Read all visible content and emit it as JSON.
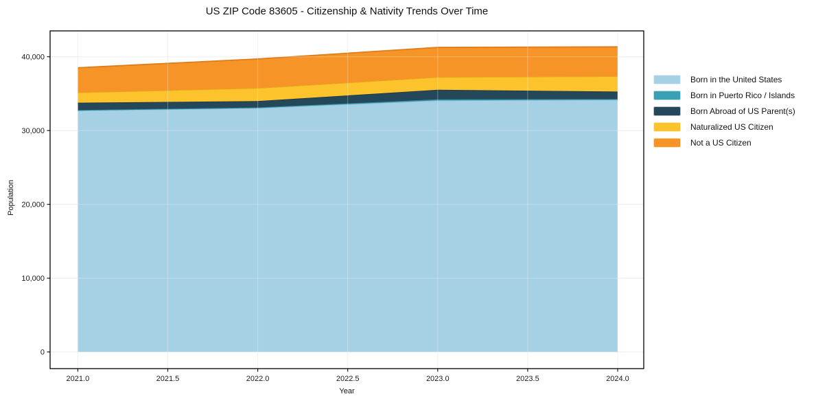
{
  "title": "US ZIP Code 83605 - Citizenship & Nativity Trends Over Time",
  "chart_data": {
    "type": "area",
    "stacked": true,
    "title": "US ZIP Code 83605 - Citizenship & Nativity Trends Over Time",
    "xlabel": "Year",
    "ylabel": "Population",
    "x": [
      2021,
      2022,
      2023,
      2024
    ],
    "xlim": [
      2020.846,
      2024.145
    ],
    "ylim": [
      -2260,
      43507
    ],
    "x_tick_values": [
      2021.0,
      2021.5,
      2022.0,
      2022.5,
      2023.0,
      2023.5,
      2024.0
    ],
    "x_ticks": [
      "2021.0",
      "2021.5",
      "2022.0",
      "2022.5",
      "2023.0",
      "2023.5",
      "2024.0"
    ],
    "y_tick_values": [
      0,
      10000,
      20000,
      30000,
      40000
    ],
    "y_ticks": [
      "0",
      "10,000",
      "20,000",
      "30,000",
      "40,000"
    ],
    "grid": true,
    "legend_position": "right-outside",
    "series": [
      {
        "name": "Born in the United States",
        "color": "#a6d0e4",
        "edge": "#8cbfd9",
        "values": [
          32700,
          33050,
          34080,
          34170
        ]
      },
      {
        "name": "Born in Puerto Rico / Islands",
        "color": "#3aa0b5",
        "edge": "#2f8a9d",
        "values": [
          80,
          80,
          150,
          100
        ]
      },
      {
        "name": "Born Abroad of US Parent(s)",
        "color": "#24485a",
        "edge": "#1b3949",
        "values": [
          990,
          870,
          1300,
          1020
        ]
      },
      {
        "name": "Naturalized US Citizen",
        "color": "#fcc32d",
        "edge": "#e6a91a",
        "values": [
          1390,
          1760,
          1710,
          2070
        ]
      },
      {
        "name": "Not a US Citizen",
        "color": "#f79428",
        "edge": "#df7d18",
        "values": [
          3350,
          3940,
          4030,
          3980
        ]
      }
    ],
    "stacked_totals": [
      38510,
      39700,
      41270,
      41340
    ],
    "colors": {
      "background": "#ffffff",
      "grid": "#ebebeb",
      "spine": "#000000",
      "tick_text": "#1a1a1a"
    }
  }
}
